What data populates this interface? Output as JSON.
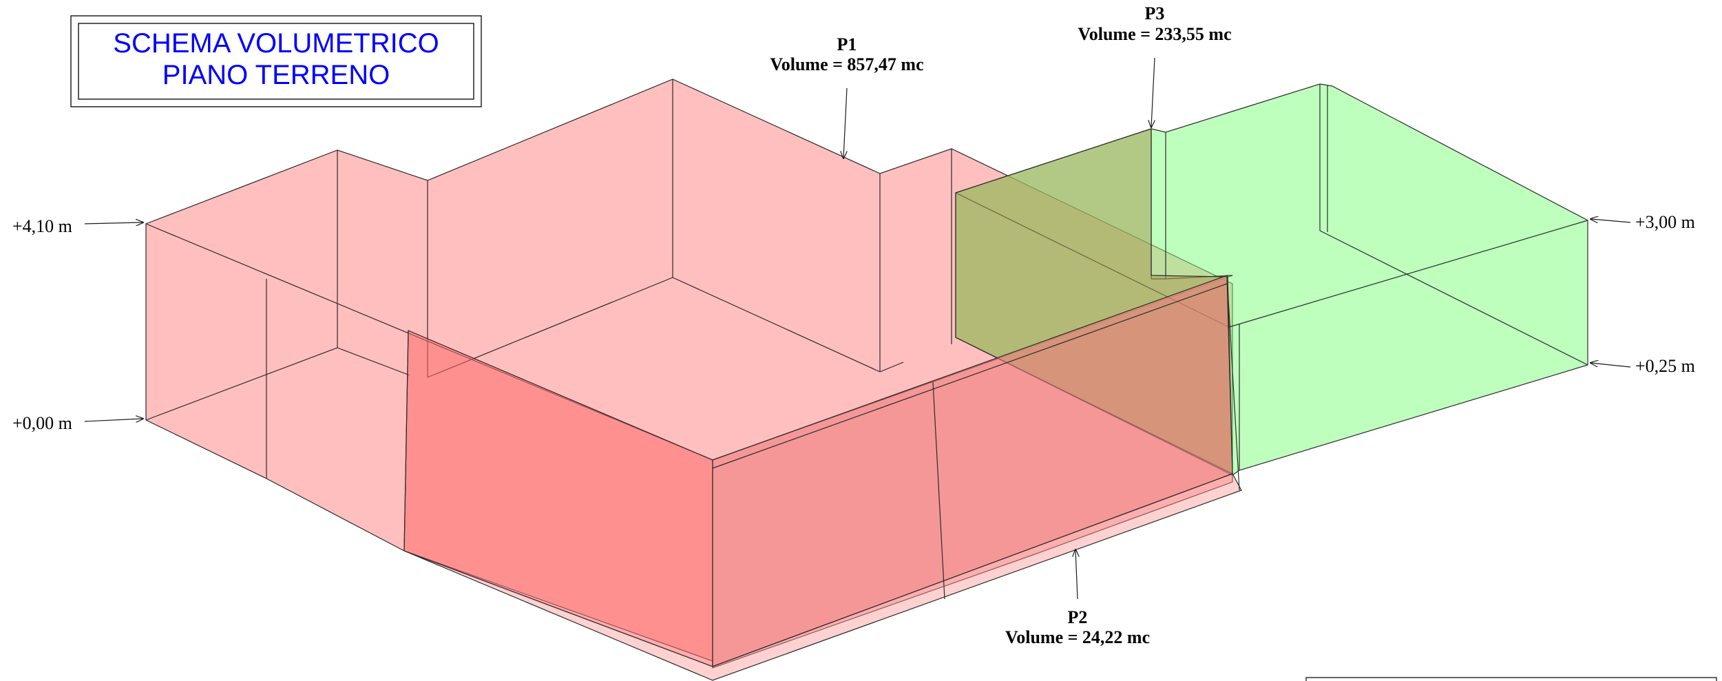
{
  "title": {
    "line1": "SCHEMA VOLUMETRICO",
    "line2": "PIANO TERRENO",
    "color": "#0000ff"
  },
  "volumes": [
    {
      "id": "P1",
      "label": "P1",
      "volume_text": "Volume = 857,47 mc",
      "fill": "#ff8a8a"
    },
    {
      "id": "P2",
      "label": "P2",
      "volume_text": "Volume = 24,22 mc",
      "fill": "#ff6a6a"
    },
    {
      "id": "P3",
      "label": "P3",
      "volume_text": "Volume = 233,55 mc",
      "fill": "#7dff7d"
    }
  ],
  "elevations": {
    "left_top": "+4,10 m",
    "left_bottom": "+0,00 m",
    "right_top": "+3,00 m",
    "right_bottom": "+0,25 m"
  },
  "overlap_fill": "#a89a55",
  "line_color": "#1a1a1a"
}
